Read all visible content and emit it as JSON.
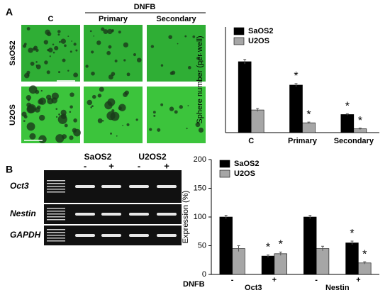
{
  "panels": {
    "a_label": "A",
    "b_label": "B",
    "microscopy": {
      "group_label": "DNFB",
      "columns": [
        "C",
        "Primary",
        "Secondary"
      ],
      "rows": [
        "SaOS2",
        "U2OS"
      ]
    },
    "gel": {
      "cell_lines": [
        "SaOS2",
        "U2OS2"
      ],
      "treatments": [
        "-",
        "+",
        "-",
        "+"
      ],
      "genes": [
        "Oct3",
        "Nestin",
        "GAPDH"
      ]
    }
  },
  "chart_data": [
    {
      "type": "bar",
      "y_label": "Sphere number (per well)",
      "categories": [
        "C",
        "Primary",
        "Secondary"
      ],
      "ylim": [
        0,
        140
      ],
      "legend": "upper left",
      "series": [
        {
          "name": "SaOS2",
          "color": "#000000",
          "values": [
            94,
            63,
            24
          ],
          "errors": [
            3,
            2,
            1
          ],
          "marks": [
            null,
            "*",
            "*"
          ]
        },
        {
          "name": "U2OS",
          "color": "#a6a6a6",
          "values": [
            30,
            13,
            5
          ],
          "errors": [
            2,
            1,
            1
          ],
          "marks": [
            null,
            "*",
            "*"
          ]
        }
      ]
    },
    {
      "type": "bar",
      "y_label": "Expression (%)",
      "x_label": "DNFB",
      "categories": [
        "-",
        "+",
        "-",
        "+"
      ],
      "groups": [
        "Oct3",
        "Nestin"
      ],
      "ylim": [
        0,
        200
      ],
      "yticks": [
        0,
        50,
        100,
        150,
        200
      ],
      "legend": "upper left",
      "series": [
        {
          "name": "SaOS2",
          "color": "#000000",
          "values": [
            100,
            32,
            100,
            55
          ],
          "errors": [
            3,
            2,
            3,
            3
          ],
          "marks": [
            null,
            "*",
            null,
            "*"
          ]
        },
        {
          "name": "U2OS",
          "color": "#a6a6a6",
          "values": [
            45,
            36,
            45,
            20
          ],
          "errors": [
            5,
            3,
            4,
            2
          ],
          "marks": [
            null,
            "*",
            null,
            "*"
          ]
        }
      ]
    }
  ]
}
